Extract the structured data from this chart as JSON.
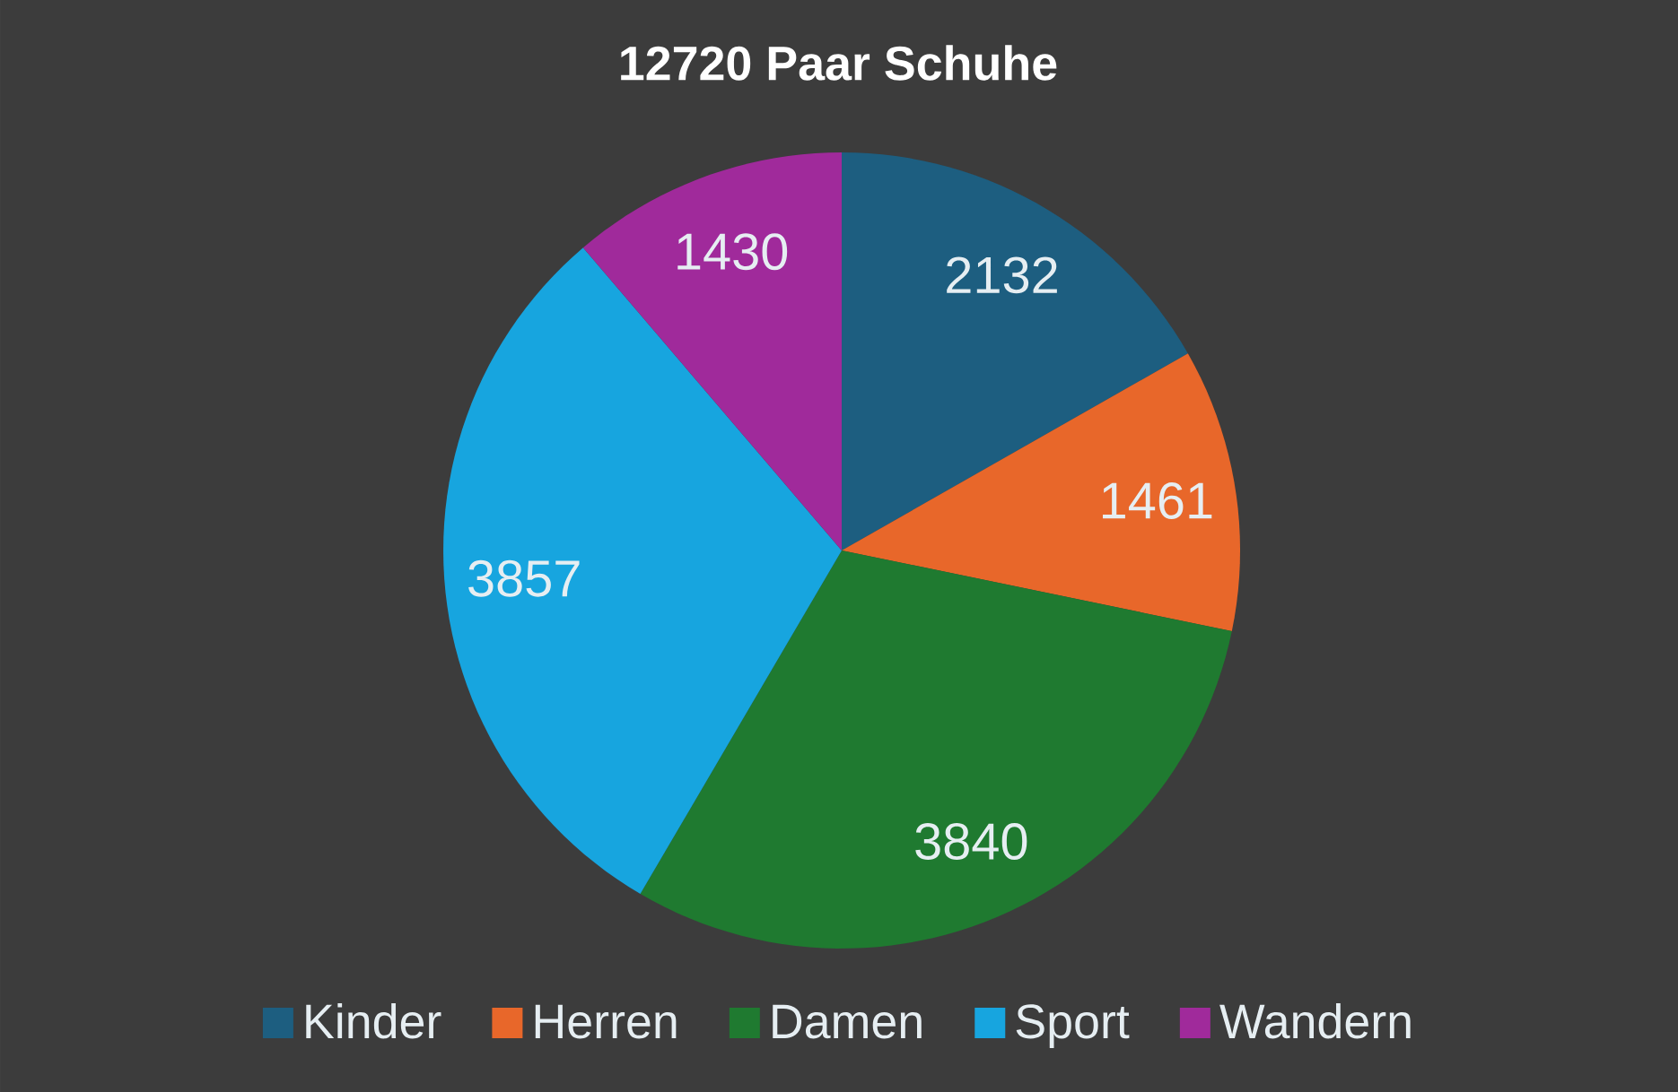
{
  "chart_data": {
    "type": "pie",
    "title": "12720 Paar Schuhe",
    "categories": [
      "Kinder",
      "Herren",
      "Damen",
      "Sport",
      "Wandern"
    ],
    "values": [
      2132,
      1461,
      3840,
      3857,
      1430
    ],
    "colors": [
      "#1d5e80",
      "#e8672a",
      "#1f7a30",
      "#17a5df",
      "#a02a9b"
    ],
    "data_labels": true,
    "legend": "bottom"
  }
}
